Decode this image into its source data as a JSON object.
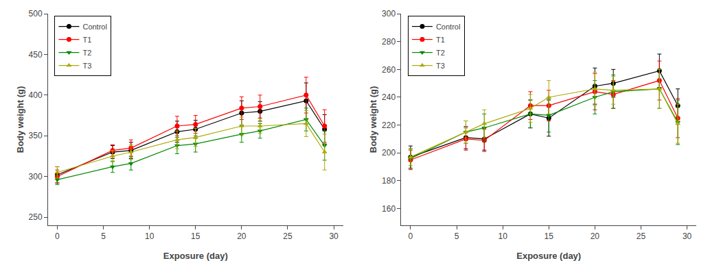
{
  "chart_data": [
    {
      "type": "line",
      "xlabel": "Exposure (day)",
      "ylabel": "Body weight (g)",
      "x": [
        0,
        6,
        8,
        13,
        15,
        20,
        22,
        27,
        29
      ],
      "xlim": [
        -1,
        31
      ],
      "xticks": [
        0,
        5,
        10,
        15,
        20,
        25,
        30
      ],
      "ylim": [
        240,
        500
      ],
      "yticks": [
        250,
        300,
        350,
        400,
        450,
        500
      ],
      "grid": false,
      "legend": "upper left",
      "series": [
        {
          "name": "Control",
          "color": "#000000",
          "marker": "circle",
          "values": [
            302,
            330,
            332,
            355,
            358,
            378,
            380,
            393,
            358
          ],
          "yerr": [
            10,
            8,
            10,
            13,
            11,
            15,
            12,
            22,
            18
          ]
        },
        {
          "name": "T1",
          "color": "#ff0000",
          "marker": "circle",
          "values": [
            300,
            332,
            335,
            362,
            364,
            384,
            386,
            400,
            362
          ],
          "yerr": [
            8,
            7,
            10,
            12,
            11,
            14,
            14,
            22,
            20
          ]
        },
        {
          "name": "T2",
          "color": "#008800",
          "marker": "triangle-down",
          "values": [
            296,
            312,
            316,
            338,
            340,
            352,
            356,
            370,
            338
          ],
          "yerr": [
            6,
            7,
            8,
            10,
            10,
            10,
            9,
            14,
            18
          ]
        },
        {
          "name": "T3",
          "color": "#aaaa00",
          "marker": "triangle-up",
          "values": [
            305,
            325,
            330,
            345,
            348,
            362,
            362,
            365,
            330
          ],
          "yerr": [
            7,
            7,
            9,
            11,
            11,
            11,
            9,
            16,
            22
          ]
        }
      ]
    },
    {
      "type": "line",
      "xlabel": "Exposure (day)",
      "ylabel": "Body weight (g)",
      "x": [
        0,
        6,
        8,
        13,
        15,
        20,
        22,
        27,
        29
      ],
      "xlim": [
        -1,
        31
      ],
      "xticks": [
        0,
        5,
        10,
        15,
        20,
        25,
        30
      ],
      "ylim": [
        148,
        300
      ],
      "yticks": [
        160,
        180,
        200,
        220,
        240,
        260,
        280,
        300
      ],
      "grid": false,
      "legend": "upper left",
      "series": [
        {
          "name": "Control",
          "color": "#000000",
          "marker": "circle",
          "values": [
            197,
            211,
            210,
            228,
            225,
            248,
            250,
            259,
            234
          ],
          "yerr": [
            8,
            8,
            8,
            10,
            13,
            13,
            10,
            12,
            12
          ]
        },
        {
          "name": "T1",
          "color": "#ff0000",
          "marker": "circle",
          "values": [
            195,
            210,
            209,
            234,
            234,
            244,
            242,
            252,
            225
          ],
          "yerr": [
            7,
            8,
            8,
            10,
            11,
            13,
            10,
            14,
            14
          ]
        },
        {
          "name": "T2",
          "color": "#008800",
          "marker": "triangle-down",
          "values": [
            196,
            215,
            218,
            228,
            227,
            240,
            244,
            246,
            222
          ],
          "yerr": [
            7,
            8,
            10,
            10,
            12,
            12,
            12,
            14,
            16
          ]
        },
        {
          "name": "T3",
          "color": "#aaaa00",
          "marker": "triangle-up",
          "values": [
            197,
            215,
            221,
            232,
            240,
            246,
            245,
            246,
            221
          ],
          "yerr": [
            6,
            8,
            10,
            10,
            12,
            12,
            10,
            14,
            14
          ]
        }
      ]
    }
  ]
}
